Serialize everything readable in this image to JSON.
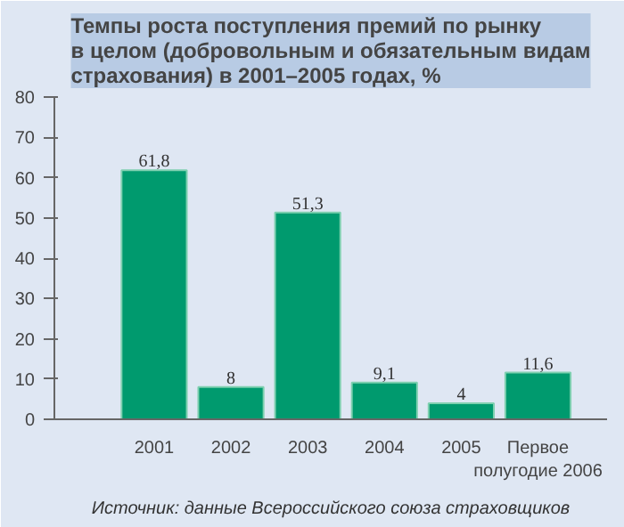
{
  "chart_data": {
    "type": "bar",
    "title": "Темпы роста поступления премий по рынку\nв целом (добровольным и обязательным видам\nстрахования) в 2001–2005 годах, %",
    "categories": [
      "2001",
      "2002",
      "2003",
      "2004",
      "2005",
      "Первое\nполугодие 2006"
    ],
    "values": [
      61.8,
      8,
      51.3,
      9.1,
      4,
      11.6
    ],
    "value_labels": [
      "61,8",
      "8",
      "51,3",
      "9,1",
      "4",
      "11,6"
    ],
    "color": "#009a6e",
    "ylim": [
      0,
      80
    ],
    "yticks": [
      0,
      10,
      20,
      30,
      40,
      50,
      60,
      70,
      80
    ],
    "grid": false,
    "annotations": [
      "Источник: данные Всероссийского союза страховщиков"
    ]
  }
}
